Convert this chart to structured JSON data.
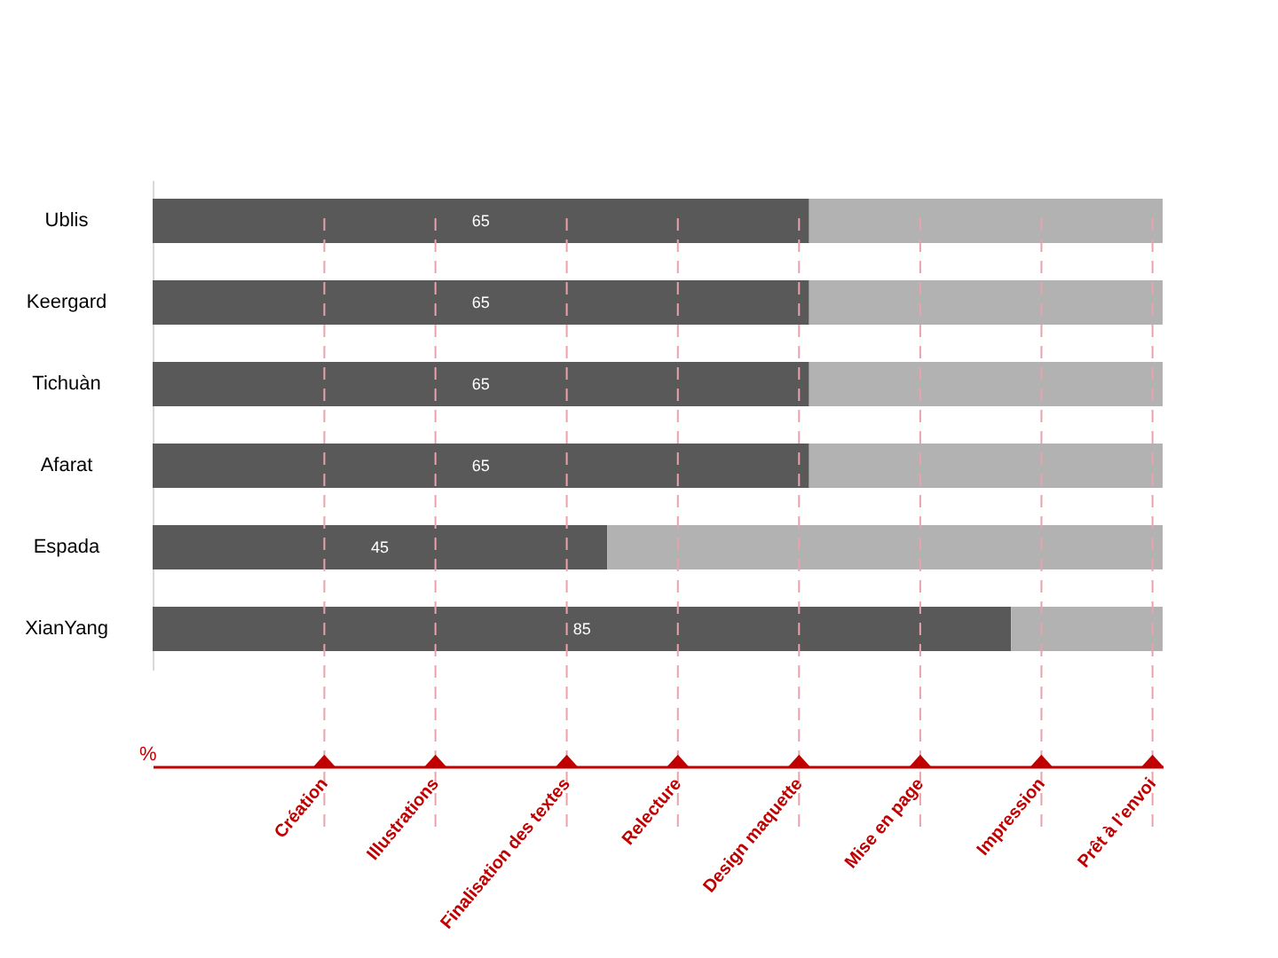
{
  "chart_data": {
    "type": "bar",
    "orientation": "horizontal",
    "stacked": true,
    "categories": [
      "Ublis",
      "Keergard",
      "Tichuàn",
      "Afarat",
      "Espada",
      "XianYang"
    ],
    "series": [
      {
        "color": "#595959",
        "values": [
          65,
          65,
          65,
          65,
          45,
          85
        ],
        "value_labels": [
          "65",
          "65",
          "65",
          "65",
          "45",
          "85"
        ]
      },
      {
        "color": "#b2b2b2",
        "values": [
          35,
          35,
          35,
          35,
          55,
          15
        ]
      }
    ],
    "xlabel": "%",
    "xlim": [
      0,
      100
    ],
    "ref_lines": [
      {
        "axis": "x",
        "value": 17,
        "label": "Création",
        "color": "#e8a3ab",
        "line_style": "dashed"
      },
      {
        "axis": "x",
        "value": 28,
        "label": "Illustrations",
        "color": "#e8a3ab",
        "line_style": "dashed"
      },
      {
        "axis": "x",
        "value": 41,
        "label": "Finalisation des textes",
        "color": "#e8a3ab",
        "line_style": "dashed"
      },
      {
        "axis": "x",
        "value": 52,
        "label": "Relecture",
        "color": "#e8a3ab",
        "line_style": "dashed"
      },
      {
        "axis": "x",
        "value": 64,
        "label": "Design maquette",
        "color": "#e8a3ab",
        "line_style": "dashed"
      },
      {
        "axis": "x",
        "value": 76,
        "label": "Mise en page",
        "color": "#e8a3ab",
        "line_style": "dashed"
      },
      {
        "axis": "x",
        "value": 88,
        "label": "Impression",
        "color": "#e8a3ab",
        "line_style": "dashed"
      },
      {
        "axis": "x",
        "value": 99,
        "label": "Prêt à l’envoi",
        "color": "#e8a3ab",
        "line_style": "dashed"
      }
    ]
  }
}
